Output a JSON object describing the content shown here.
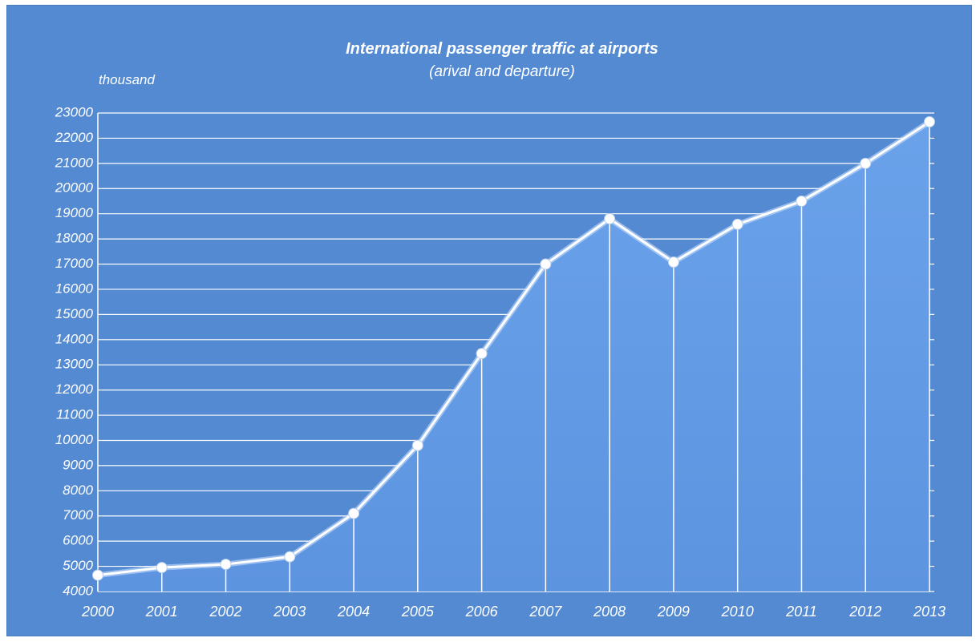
{
  "chart_data": {
    "type": "area",
    "title": "International passenger traffic at airports",
    "subtitle": "(arival and departure)",
    "ylabel": "thousand",
    "xlabel": "",
    "categories": [
      "2000",
      "2001",
      "2002",
      "2003",
      "2004",
      "2005",
      "2006",
      "2007",
      "2008",
      "2009",
      "2010",
      "2011",
      "2012",
      "2013"
    ],
    "values": [
      4650,
      4950,
      5080,
      5380,
      7100,
      9800,
      13450,
      17000,
      18800,
      17080,
      18580,
      19500,
      21000,
      22650
    ],
    "ylim": [
      4000,
      23000
    ],
    "yticks": [
      "4000",
      "5000",
      "6000",
      "7000",
      "8000",
      "9000",
      "10000",
      "11000",
      "12000",
      "13000",
      "14000",
      "15000",
      "16000",
      "17000",
      "18000",
      "19000",
      "20000",
      "21000",
      "22000",
      "23000"
    ],
    "grid": true,
    "legend": "none",
    "colors": {
      "background": "#548ad2",
      "area_fill": "#6a9fe6",
      "line": "#ffffff",
      "grid": "#ffffff"
    }
  }
}
